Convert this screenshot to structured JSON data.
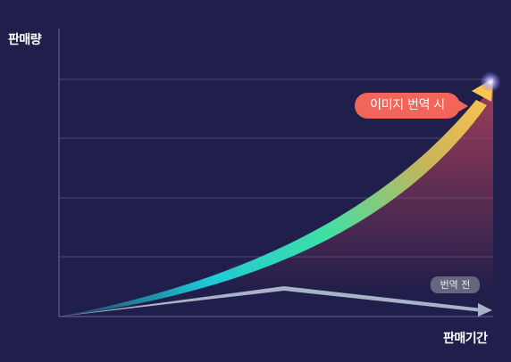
{
  "axes": {
    "y_label": "판매량",
    "x_label": "판매기간"
  },
  "series": {
    "after": {
      "label": "이미지 번역 시",
      "trend": "exponential-up"
    },
    "before": {
      "label": "번역 전",
      "trend": "rise-then-flat"
    }
  },
  "grid": {
    "horizontal_lines": 4
  },
  "colors": {
    "background": "#201e4a",
    "grid": "#4a4870",
    "after_gradient": [
      "#1ec9d8",
      "#3ee0a6",
      "#c9b45a",
      "#ffc54d"
    ],
    "after_fill": "#9a4060",
    "after_label_bg": "#f2655a",
    "before_line": "#a9b3c8",
    "before_label_bg": "#67667f"
  }
}
